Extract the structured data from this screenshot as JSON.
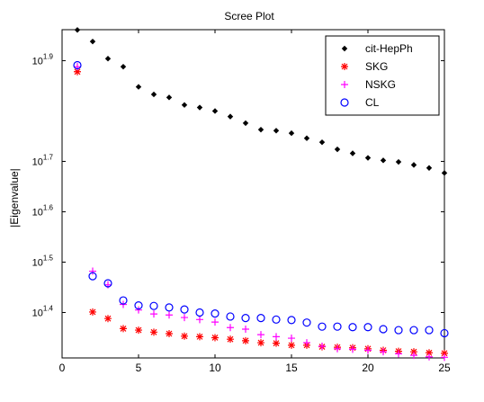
{
  "chart_data": {
    "type": "scatter",
    "title": "Scree Plot",
    "xlabel": "",
    "ylabel": "|Eigenvalue|",
    "xlim": [
      0,
      25
    ],
    "x_ticks": [
      0,
      5,
      10,
      15,
      20,
      25
    ],
    "y_scale": "log",
    "ylim_log10": [
      1.3098,
      1.9615
    ],
    "y_ticks": [
      {
        "log10": 1.4,
        "base": "10",
        "exp": "1.4"
      },
      {
        "log10": 1.5,
        "base": "10",
        "exp": "1.5"
      },
      {
        "log10": 1.6,
        "base": "10",
        "exp": "1.6"
      },
      {
        "log10": 1.7,
        "base": "10",
        "exp": "1.7"
      },
      {
        "log10": 1.9,
        "base": "10",
        "exp": "1.9"
      }
    ],
    "grid": false,
    "legend_position": "top-right",
    "x": [
      1,
      2,
      3,
      4,
      5,
      6,
      7,
      8,
      9,
      10,
      11,
      12,
      13,
      14,
      15,
      16,
      17,
      18,
      19,
      20,
      21,
      22,
      23,
      24,
      25
    ],
    "series": [
      {
        "name": "cit-HepPh",
        "marker": "diamond",
        "color": "#000000",
        "log10_values": [
          1.961,
          1.938,
          1.904,
          1.888,
          1.848,
          1.833,
          1.827,
          1.812,
          1.807,
          1.8,
          1.789,
          1.776,
          1.763,
          1.761,
          1.756,
          1.746,
          1.738,
          1.724,
          1.716,
          1.707,
          1.702,
          1.699,
          1.693,
          1.687,
          1.677
        ]
      },
      {
        "name": "SKG",
        "marker": "asterisk",
        "color": "#ff0000",
        "log10_values": [
          1.878,
          1.401,
          1.388,
          1.368,
          1.365,
          1.361,
          1.358,
          1.353,
          1.352,
          1.35,
          1.347,
          1.344,
          1.34,
          1.339,
          1.335,
          1.335,
          1.332,
          1.331,
          1.33,
          1.328,
          1.325,
          1.323,
          1.322,
          1.32,
          1.319
        ]
      },
      {
        "name": "NSKG",
        "marker": "plus",
        "color": "#ff00ff",
        "log10_values": [
          1.888,
          1.482,
          1.455,
          1.416,
          1.405,
          1.397,
          1.395,
          1.39,
          1.386,
          1.381,
          1.37,
          1.367,
          1.356,
          1.352,
          1.349,
          1.34,
          1.333,
          1.328,
          1.327,
          1.325,
          1.322,
          1.318,
          1.315,
          1.312,
          1.311
        ]
      },
      {
        "name": "CL",
        "marker": "circle",
        "color": "#0000ff",
        "log10_values": [
          1.891,
          1.472,
          1.458,
          1.424,
          1.414,
          1.413,
          1.41,
          1.406,
          1.4,
          1.398,
          1.392,
          1.389,
          1.389,
          1.386,
          1.385,
          1.38,
          1.372,
          1.372,
          1.371,
          1.371,
          1.367,
          1.365,
          1.365,
          1.365,
          1.359
        ]
      }
    ]
  }
}
